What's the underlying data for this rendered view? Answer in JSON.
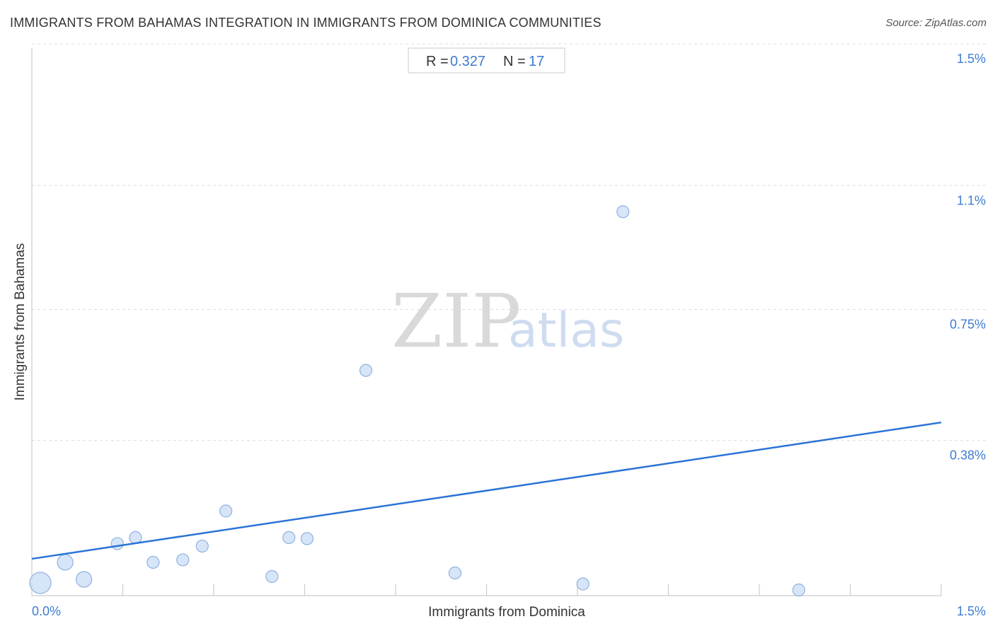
{
  "header": {
    "title": "IMMIGRANTS FROM BAHAMAS INTEGRATION IN IMMIGRANTS FROM DOMINICA COMMUNITIES",
    "source": "Source: ZipAtlas.com"
  },
  "stats": {
    "r_key": "R =",
    "r_value": "0.327",
    "n_key": "N =",
    "n_value": "17"
  },
  "watermark": {
    "zip": "ZIP",
    "atlas": "atlas"
  },
  "colors": {
    "accent": "#3d7bd1",
    "trend_line": "#2a73d6",
    "point_fill": "#c9dcf5",
    "point_stroke": "#8fb1e0",
    "grid": "#dddddd"
  },
  "chart_data": {
    "type": "scatter",
    "title": "IMMIGRANTS FROM BAHAMAS INTEGRATION IN IMMIGRANTS FROM DOMINICA COMMUNITIES",
    "xlabel": "Immigrants from Dominica",
    "ylabel": "Immigrants from Bahamas",
    "xlim": [
      0,
      1.5
    ],
    "ylim": [
      0,
      1.5
    ],
    "x_tick_labels": [
      {
        "value": 0,
        "label": "0.0%"
      },
      {
        "value": 1.5,
        "label": "1.5%"
      }
    ],
    "y_ticks": [
      {
        "value": 1.5,
        "label": "1.5%"
      },
      {
        "value": 1.1,
        "label": "1.1%"
      },
      {
        "value": 0.75,
        "label": "0.75%"
      },
      {
        "value": 0.38,
        "label": "0.38%"
      }
    ],
    "grid": "horizontal dashed",
    "points": [
      {
        "x": 0.014,
        "y": 0.012,
        "size": 3
      },
      {
        "x": 0.055,
        "y": 0.07,
        "size": 2
      },
      {
        "x": 0.086,
        "y": 0.022,
        "size": 2
      },
      {
        "x": 0.141,
        "y": 0.123,
        "size": 1
      },
      {
        "x": 0.171,
        "y": 0.14,
        "size": 1
      },
      {
        "x": 0.2,
        "y": 0.07,
        "size": 1
      },
      {
        "x": 0.249,
        "y": 0.077,
        "size": 1
      },
      {
        "x": 0.281,
        "y": 0.116,
        "size": 1
      },
      {
        "x": 0.32,
        "y": 0.215,
        "size": 1
      },
      {
        "x": 0.396,
        "y": 0.03,
        "size": 1
      },
      {
        "x": 0.424,
        "y": 0.14,
        "size": 1
      },
      {
        "x": 0.454,
        "y": 0.137,
        "size": 1
      },
      {
        "x": 0.551,
        "y": 0.612,
        "size": 1
      },
      {
        "x": 0.698,
        "y": 0.04,
        "size": 1
      },
      {
        "x": 0.909,
        "y": 0.009,
        "size": 1
      },
      {
        "x": 0.975,
        "y": 1.06,
        "size": 1
      },
      {
        "x": 1.265,
        "y": -0.008,
        "size": 1
      }
    ],
    "trend_line": {
      "x": [
        0,
        1.5
      ],
      "y": [
        0.08,
        0.465
      ]
    },
    "annotations": [
      "R = 0.327",
      "N = 17"
    ]
  }
}
